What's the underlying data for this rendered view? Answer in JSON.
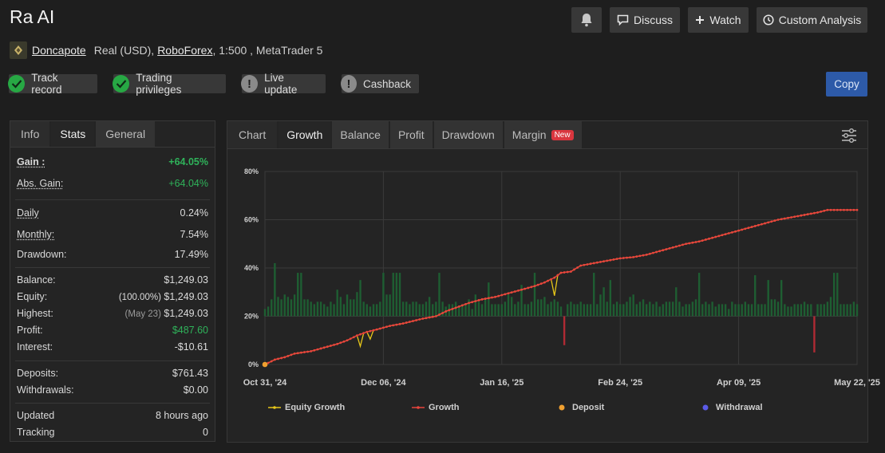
{
  "header": {
    "title": "Ra AI",
    "discuss_label": "Discuss",
    "watch_label": "Watch",
    "custom_label": "Custom Analysis"
  },
  "account": {
    "username": "Doncapote",
    "type": "Real (USD),",
    "broker": "RoboForex",
    "rest": ", 1:500 , MetaTrader 5"
  },
  "badges": [
    {
      "label": "Track record",
      "status": "ok"
    },
    {
      "label": "Trading privileges",
      "status": "ok"
    },
    {
      "label": "Live update",
      "status": "warn"
    },
    {
      "label": "Cashback",
      "status": "warn"
    }
  ],
  "copy_label": "Copy",
  "stats_tabs": [
    "Info",
    "Stats",
    "General"
  ],
  "stats": {
    "gain_label": "Gain :",
    "gain": "+64.05%",
    "abs_gain_label": "Abs. Gain:",
    "abs_gain": "+64.04%",
    "daily_label": "Daily",
    "daily": "0.24%",
    "monthly_label": "Monthly:",
    "monthly": "7.54%",
    "drawdown_label": "Drawdown:",
    "drawdown": "17.49%",
    "balance_label": "Balance:",
    "balance": "$1,249.03",
    "equity_label": "Equity:",
    "equity_pct": "(100.00%)",
    "equity": "$1,249.03",
    "highest_label": "Highest:",
    "highest_date": "(May 23)",
    "highest": "$1,249.03",
    "profit_label": "Profit:",
    "profit": "$487.60",
    "interest_label": "Interest:",
    "interest": "-$10.61",
    "deposits_label": "Deposits:",
    "deposits": "$761.43",
    "withdrawals_label": "Withdrawals:",
    "withdrawals": "$0.00",
    "updated_label": "Updated",
    "updated": "8 hours ago",
    "tracking_label": "Tracking",
    "tracking": "0"
  },
  "chart_tabs": [
    "Chart",
    "Growth",
    "Balance",
    "Profit",
    "Drawdown",
    "Margin"
  ],
  "chart_new_badge": "New",
  "colors": {
    "growth_line": "#e8453c",
    "equity_line": "#e6c619",
    "bars_positive": "#1e5e32",
    "bars_negative": "#b02a34",
    "deposit": "#f0a030",
    "withdrawal": "#5a5ae6"
  },
  "chart_data": {
    "type": "line",
    "x_ticks": [
      "Oct 31, '24",
      "Dec 06, '24",
      "Jan 16, '25",
      "Feb 24, '25",
      "Apr 09, '25",
      "May 22, '25"
    ],
    "y_ticks": [
      "0%",
      "20%",
      "40%",
      "60%",
      "80%"
    ],
    "ylim": [
      0,
      80
    ],
    "legend": [
      "Equity Growth",
      "Growth",
      "Deposit",
      "Withdrawal"
    ],
    "legend_position": "bottom",
    "growth_anchors": [
      [
        0,
        0
      ],
      [
        3,
        2
      ],
      [
        6,
        3
      ],
      [
        9,
        4.5
      ],
      [
        14,
        5.5
      ],
      [
        18,
        7
      ],
      [
        22,
        8.5
      ],
      [
        25,
        10
      ],
      [
        28,
        12
      ],
      [
        31,
        13.5
      ],
      [
        34,
        14.5
      ],
      [
        38,
        16
      ],
      [
        42,
        17
      ],
      [
        45,
        18
      ],
      [
        48,
        19
      ],
      [
        52,
        20
      ],
      [
        55,
        22
      ],
      [
        58,
        23.5
      ],
      [
        62,
        25.5
      ],
      [
        66,
        27
      ],
      [
        70,
        28
      ],
      [
        74,
        29.5
      ],
      [
        78,
        31
      ],
      [
        82,
        32.5
      ],
      [
        85,
        34
      ],
      [
        88,
        36
      ],
      [
        90,
        38
      ],
      [
        93,
        38.5
      ],
      [
        96,
        41
      ],
      [
        100,
        42
      ],
      [
        104,
        43
      ],
      [
        108,
        44
      ],
      [
        112,
        44.5
      ],
      [
        116,
        45.5
      ],
      [
        120,
        47
      ],
      [
        124,
        48.5
      ],
      [
        128,
        50
      ],
      [
        132,
        51
      ],
      [
        136,
        52.5
      ],
      [
        140,
        54
      ],
      [
        144,
        55.5
      ],
      [
        148,
        57
      ],
      [
        152,
        58.5
      ],
      [
        156,
        60
      ],
      [
        160,
        61
      ],
      [
        164,
        62
      ],
      [
        168,
        63
      ],
      [
        171,
        64.05
      ]
    ],
    "equity_dips": [
      [
        29,
        7.5
      ],
      [
        32,
        10.5
      ],
      [
        88,
        28.5
      ]
    ],
    "deposits": [
      [
        0,
        0
      ]
    ],
    "bars": [
      3,
      4,
      7,
      22,
      8,
      7,
      9,
      8,
      7,
      9,
      18,
      18,
      7,
      7,
      6,
      5,
      6,
      6,
      5,
      4,
      6,
      5,
      11,
      8,
      5,
      9,
      7,
      7,
      10,
      15,
      6,
      5,
      4,
      5,
      5,
      6,
      18,
      9,
      9,
      18,
      18,
      18,
      6,
      6,
      5,
      6,
      6,
      5,
      5,
      6,
      8,
      5,
      6,
      18,
      6,
      4,
      5,
      5,
      6,
      4,
      5,
      5,
      7,
      3,
      9,
      6,
      5,
      7,
      14,
      5,
      5,
      5,
      5,
      6,
      9,
      8,
      5,
      6,
      13,
      5,
      5,
      6,
      18,
      7,
      7,
      8,
      5,
      6,
      7,
      6,
      4,
      -12,
      5,
      6,
      5,
      5,
      6,
      5,
      5,
      5,
      18,
      5,
      9,
      12,
      6,
      15,
      5,
      6,
      5,
      5,
      6,
      8,
      9,
      5,
      6,
      7,
      5,
      6,
      5,
      6,
      4,
      5,
      6,
      6,
      6,
      12,
      6,
      4,
      5,
      5,
      6,
      7,
      18,
      5,
      6,
      5,
      6,
      4,
      5,
      5,
      5,
      3,
      6,
      5,
      5,
      5,
      6,
      5,
      5,
      17,
      5,
      5,
      5,
      15,
      7,
      7,
      6,
      15,
      5,
      4,
      4,
      5,
      5,
      5,
      6,
      5,
      5,
      -15,
      5,
      5,
      5,
      6,
      8,
      18,
      18,
      5,
      5,
      5,
      5,
      6,
      5
    ]
  }
}
